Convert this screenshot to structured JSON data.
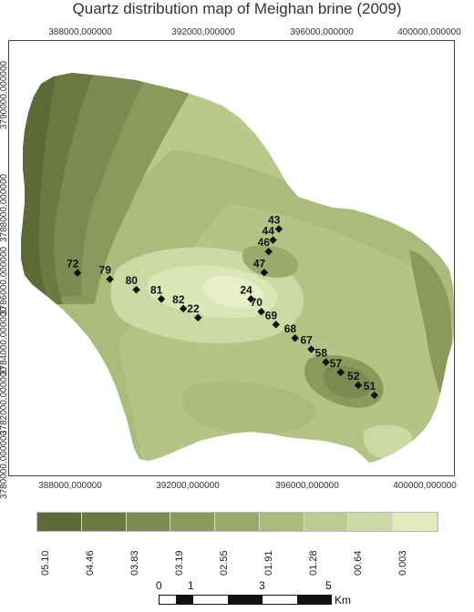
{
  "title": "Quartz distribution map of Meighan brine (2009)",
  "axes": {
    "x_ticks": [
      "388000,000000",
      "392000,000000",
      "396000,000000",
      "400000,000000"
    ],
    "y_ticks": [
      "3790000,000000",
      "3788000,000000",
      "3786000,000000",
      "3784000,000000",
      "3782000,000000",
      "3780000,000000"
    ]
  },
  "stations": [
    {
      "label": "43",
      "x": 395100,
      "y": 3787350
    },
    {
      "label": "44",
      "x": 394900,
      "y": 3786980
    },
    {
      "label": "46",
      "x": 394750,
      "y": 3786600
    },
    {
      "label": "47",
      "x": 394600,
      "y": 3785900
    },
    {
      "label": "72",
      "x": 388250,
      "y": 3785890
    },
    {
      "label": "79",
      "x": 389350,
      "y": 3785680
    },
    {
      "label": "80",
      "x": 390250,
      "y": 3785330
    },
    {
      "label": "81",
      "x": 391100,
      "y": 3785020
    },
    {
      "label": "82",
      "x": 391850,
      "y": 3784700
    },
    {
      "label": "22",
      "x": 392350,
      "y": 3784400
    },
    {
      "label": "24",
      "x": 394150,
      "y": 3785020
    },
    {
      "label": "70",
      "x": 394500,
      "y": 3784600
    },
    {
      "label": "69",
      "x": 395000,
      "y": 3784170
    },
    {
      "label": "68",
      "x": 395650,
      "y": 3783720
    },
    {
      "label": "67",
      "x": 396200,
      "y": 3783350
    },
    {
      "label": "58",
      "x": 396700,
      "y": 3782920
    },
    {
      "label": "57",
      "x": 397200,
      "y": 3782580
    },
    {
      "label": "52",
      "x": 397800,
      "y": 3782150
    },
    {
      "label": "51",
      "x": 398350,
      "y": 3781820
    }
  ],
  "legend": {
    "labels": [
      "05.10",
      "04.46",
      "03.83",
      "03.19",
      "02.55",
      "01.91",
      "01.28",
      "00.64",
      "0.003"
    ],
    "colors": [
      "#5c6b35",
      "#6b7a41",
      "#7b8a4e",
      "#8b9a5c",
      "#9aaa6a",
      "#aabb7c",
      "#bccb90",
      "#cdd9a5",
      "#e1ebbf"
    ]
  },
  "scale_bar": {
    "ticks": [
      "0",
      "1",
      "3",
      "5"
    ],
    "unit": "Km"
  }
}
